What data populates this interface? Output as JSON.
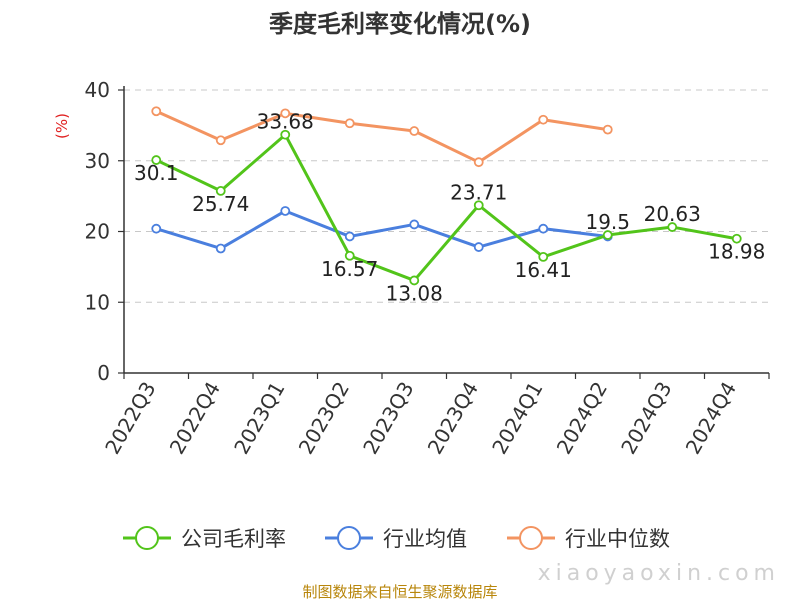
{
  "chart_data": {
    "type": "line",
    "title": "季度毛利率变化情况(%)",
    "ylabel": "(%)",
    "xlabel": "",
    "ylim": [
      0,
      40
    ],
    "yticks": [
      0,
      10,
      20,
      30,
      40
    ],
    "grid": true,
    "legend_position": "bottom",
    "categories": [
      "2022Q3",
      "2022Q4",
      "2023Q1",
      "2023Q2",
      "2023Q3",
      "2023Q4",
      "2024Q1",
      "2024Q2",
      "2024Q3",
      "2024Q4"
    ],
    "series": [
      {
        "name": "公司毛利率",
        "color": "#52c41a",
        "values": [
          30.1,
          25.74,
          33.68,
          16.57,
          13.08,
          23.71,
          16.41,
          19.5,
          20.63,
          18.98
        ],
        "labels": [
          "30.1",
          "25.74",
          "33.68",
          "16.57",
          "13.08",
          "23.71",
          "16.41",
          "19.5",
          "20.63",
          "18.98"
        ]
      },
      {
        "name": "行业均值",
        "color": "#4a7fde",
        "values": [
          20.4,
          17.6,
          22.9,
          19.3,
          21.0,
          17.8,
          20.4,
          19.3,
          null,
          null
        ]
      },
      {
        "name": "行业中位数",
        "color": "#f39461",
        "values": [
          37.0,
          32.9,
          36.7,
          35.3,
          34.2,
          29.8,
          35.8,
          34.4,
          null,
          null
        ]
      }
    ]
  },
  "footer": {
    "source": "制图数据来自恒生聚源数据库",
    "watermark": "xiaoyaoxin.com"
  }
}
